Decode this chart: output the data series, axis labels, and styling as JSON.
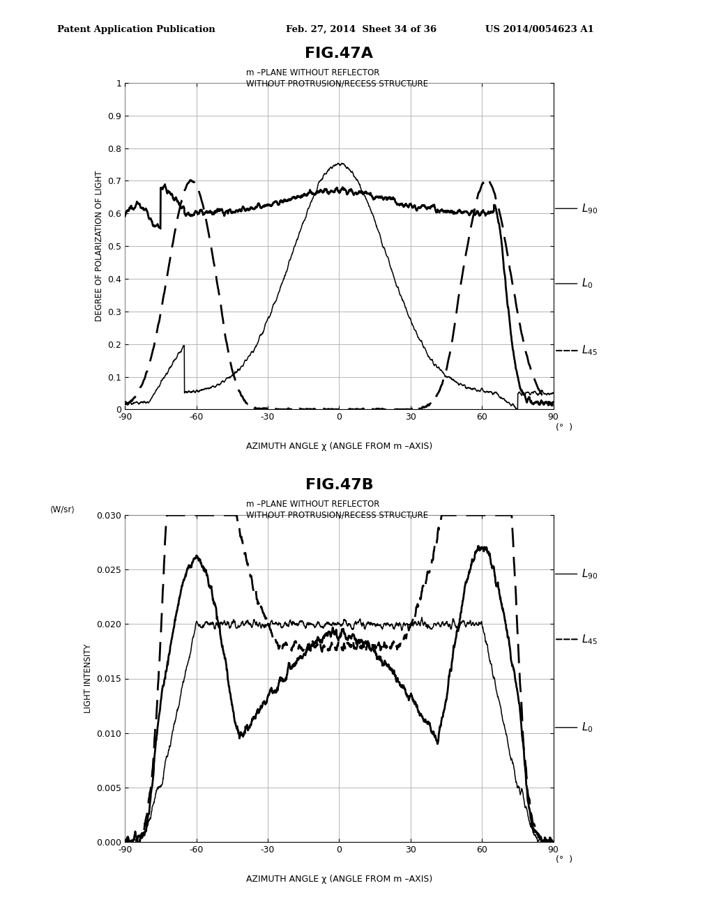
{
  "fig_title_a": "FIG.47A",
  "fig_title_b": "FIG.47B",
  "subtitle_line1": "m –PLANE WITHOUT REFLECTOR",
  "subtitle_line2": "WITHOUT PROTRUSION/RECESS STRUCTURE",
  "header_left": "Patent Application Publication",
  "header_mid": "Feb. 27, 2014  Sheet 34 of 36",
  "header_right": "US 2014/0054623 A1",
  "ylabel_a": "DEGREE OF POLARIZATION OF LIGHT",
  "ylabel_b": "LIGHT INTENSITY",
  "wsr_label": "⟨W/sr⟩",
  "xlabel": "AZIMUTH ANGLE χ (ANGLE FROM m –AXIS)",
  "ylim_a": [
    0,
    1.0
  ],
  "ylim_b": [
    0.0,
    0.03
  ],
  "yticks_a": [
    0,
    0.1,
    0.2,
    0.3,
    0.4,
    0.5,
    0.6,
    0.7,
    0.8,
    0.9,
    1.0
  ],
  "yticks_b": [
    0.0,
    0.005,
    0.01,
    0.015,
    0.02,
    0.025,
    0.03
  ],
  "xticks": [
    -90,
    -60,
    -30,
    0,
    30,
    60,
    90
  ],
  "xlim": [
    -90,
    90
  ],
  "background": "#ffffff",
  "line_color": "#000000",
  "grid_color": "#aaaaaa"
}
